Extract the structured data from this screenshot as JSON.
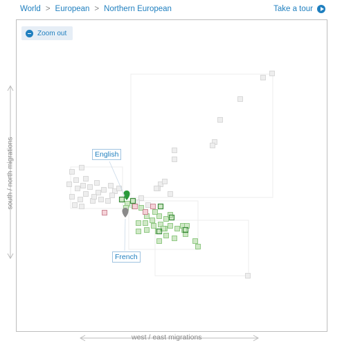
{
  "breadcrumb": {
    "items": [
      "World",
      "European",
      "Northern European"
    ],
    "separator": ">"
  },
  "tour": {
    "label": "Take a tour",
    "icon": "play-circle-icon"
  },
  "zoom": {
    "label": "Zoom out",
    "icon": "minus-circle-icon"
  },
  "axes": {
    "x_label": "west / east migrations",
    "y_label": "south / north migrations"
  },
  "groups": [
    {
      "label": "English",
      "color": "#2a9a3a"
    },
    {
      "label": "French",
      "color": "#8a8a8a"
    }
  ],
  "colors": {
    "accent": "#1f7fbf",
    "green_fill": "#cfe8c6",
    "green_dark": "#3a8a3a",
    "gray_fill": "#eeeeee",
    "gray_stroke": "#d0d0d0",
    "pink_fill": "#f5d2d8",
    "pink_stroke": "#c07080"
  }
}
